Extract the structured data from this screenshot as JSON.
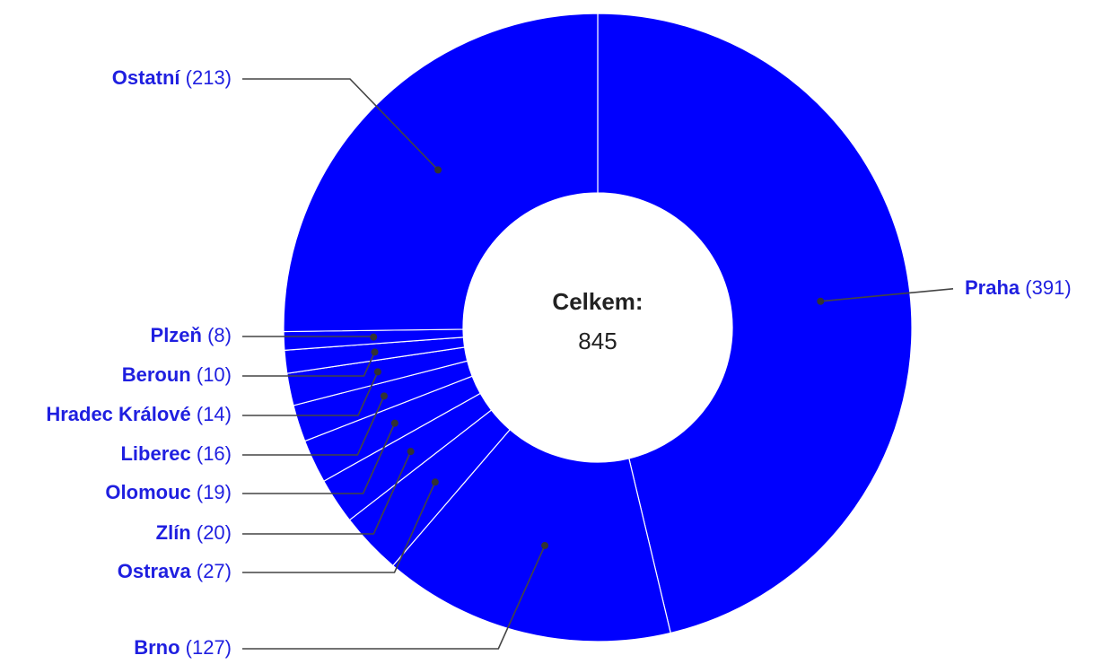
{
  "chart_data": {
    "type": "donut",
    "categories": [
      "Praha",
      "Brno",
      "Ostrava",
      "Zlín",
      "Olomouc",
      "Liberec",
      "Hradec Králové",
      "Beroun",
      "Plzeň",
      "Ostatní"
    ],
    "values": [
      391,
      127,
      27,
      20,
      19,
      16,
      14,
      10,
      8,
      213
    ],
    "value_labels": [
      "(391)",
      "(127)",
      "(27)",
      "(20)",
      "(19)",
      "(16)",
      "(14)",
      "(10)",
      "(8)",
      "(213)"
    ],
    "color": "#0000ff",
    "center_label": "Celkem:",
    "total": 845
  }
}
